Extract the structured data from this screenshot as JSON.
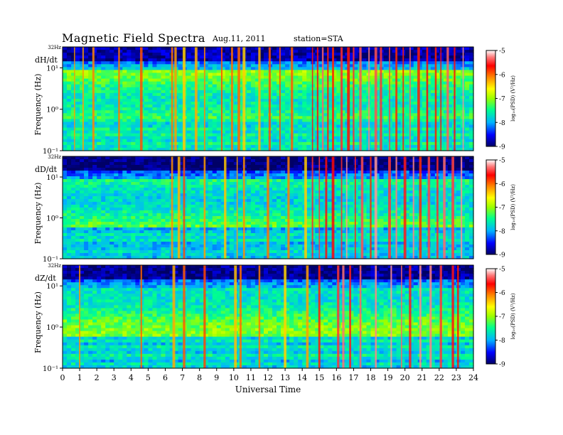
{
  "header": {
    "title": "Magnetic  Field  Spectra",
    "date": "Aug.11, 2011",
    "station": "station=STA"
  },
  "chart_data": {
    "type": "heatmap",
    "title": "Magnetic  Field  Spectra",
    "xlabel": "Universal Time",
    "xlim": [
      0,
      24
    ],
    "x_ticks": [
      "0",
      "1",
      "2",
      "3",
      "4",
      "5",
      "6",
      "7",
      "8",
      "9",
      "10",
      "11",
      "12",
      "13",
      "14",
      "15",
      "16",
      "17",
      "18",
      "19",
      "20",
      "21",
      "22",
      "23",
      "24"
    ],
    "ylabel": "Frequency  (Hz)",
    "yscale": "log",
    "ylim": [
      0.1,
      32
    ],
    "y_ticks": [
      "10⁻¹",
      "10⁰",
      "10¹"
    ],
    "y_top_label": "32Hz",
    "colorbar": {
      "label": "log₁₀(PSD) (V²/Hz)",
      "ticks": [
        "-5",
        "-6",
        "-7",
        "-8",
        "-9"
      ],
      "range": [
        -9,
        -5
      ],
      "colors": [
        "#000066",
        "#0000ff",
        "#00b4ff",
        "#00ff90",
        "#9aff00",
        "#ffff00",
        "#ff8800",
        "#ff0000",
        "#ff7a7a",
        "#ffffff"
      ]
    },
    "panels": [
      {
        "name": "dH/dt",
        "background_level": -7.4,
        "spikes_ut": [
          0.7,
          1.2,
          1.8,
          3.3,
          4.6,
          6.4,
          6.6,
          7.1,
          7.8,
          8.3,
          9.3,
          9.9,
          10.3,
          10.6,
          11.5,
          12.1,
          12.7,
          13.4,
          14.6,
          14.9,
          15.2,
          15.5,
          15.8,
          16.3,
          16.7,
          17.0,
          17.4,
          17.9,
          18.3,
          18.6,
          19.1,
          19.5,
          19.9,
          20.3,
          20.8,
          21.3,
          21.8,
          22.1,
          22.5,
          22.9,
          23.4
        ]
      },
      {
        "name": "dD/dt",
        "background_level": -7.8,
        "spikes_ut": [
          6.4,
          6.8,
          7.1,
          8.3,
          9.5,
          10.2,
          10.6,
          12.0,
          13.2,
          14.2,
          14.6,
          15.0,
          15.4,
          15.8,
          16.3,
          16.6,
          17.1,
          17.5,
          18.0,
          18.3,
          19.1,
          19.5,
          20.0,
          20.5,
          20.9,
          21.4,
          21.9,
          22.3,
          22.8,
          23.3
        ]
      },
      {
        "name": "dZ/dt",
        "background_level": -7.6,
        "spikes_ut": [
          1.0,
          4.6,
          6.5,
          7.1,
          8.3,
          10.1,
          10.4,
          11.5,
          13.0,
          14.3,
          15.0,
          16.1,
          16.4,
          16.8,
          17.4,
          18.3,
          19.2,
          19.8,
          20.3,
          20.9,
          21.5,
          22.1,
          22.8,
          23.1
        ]
      }
    ]
  }
}
